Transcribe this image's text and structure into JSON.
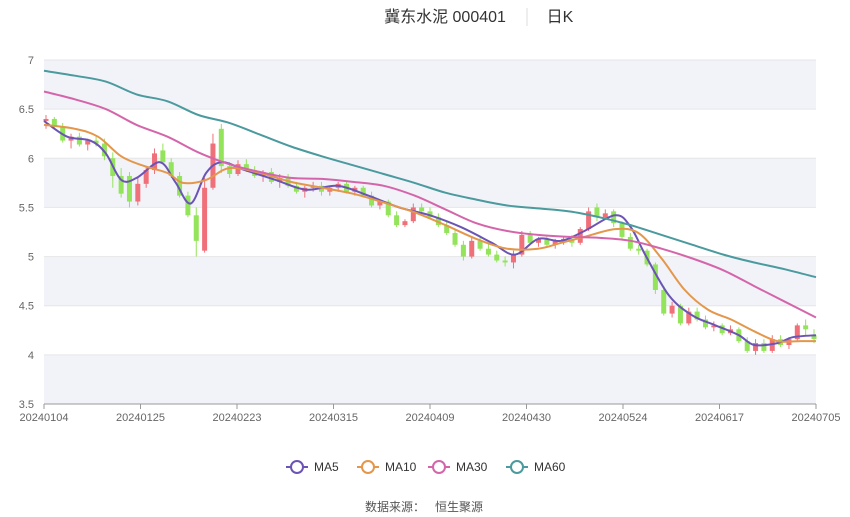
{
  "header": {
    "title": "冀东水泥 000401",
    "period": "日K"
  },
  "source": {
    "label": "数据来源：",
    "name": "恒生聚源"
  },
  "chart_data": {
    "type": "candlestick",
    "ylim": [
      3.5,
      7
    ],
    "yticks": [
      "3.5",
      "4",
      "4.5",
      "5",
      "5.5",
      "6",
      "6.5",
      "7"
    ],
    "xticks": [
      "20240104",
      "20240125",
      "20240223",
      "20240315",
      "20240409",
      "20240430",
      "20240524",
      "20240617",
      "20240705"
    ],
    "colors": {
      "up": "#f0707a",
      "down": "#93e45a",
      "band": "#f1f3f9"
    },
    "ohlc_points": [
      [
        6.38,
        6.44,
        6.3,
        6.4
      ],
      [
        6.4,
        6.42,
        6.3,
        6.32
      ],
      [
        6.32,
        6.36,
        6.16,
        6.18
      ],
      [
        6.18,
        6.25,
        6.1,
        6.22
      ],
      [
        6.22,
        6.26,
        6.12,
        6.14
      ],
      [
        6.14,
        6.2,
        6.08,
        6.18
      ],
      [
        6.18,
        6.22,
        6.12,
        6.15
      ],
      [
        6.15,
        6.2,
        5.98,
        6.02
      ],
      [
        6.0,
        6.06,
        5.7,
        5.82
      ],
      [
        5.82,
        5.9,
        5.6,
        5.64
      ],
      [
        5.82,
        5.86,
        5.5,
        5.56
      ],
      [
        5.56,
        5.8,
        5.52,
        5.74
      ],
      [
        5.74,
        5.92,
        5.7,
        5.88
      ],
      [
        5.88,
        6.1,
        5.84,
        6.05
      ],
      [
        6.08,
        6.15,
        5.95,
        5.96
      ],
      [
        5.96,
        6.0,
        5.8,
        5.82
      ],
      [
        5.82,
        5.86,
        5.6,
        5.62
      ],
      [
        5.62,
        5.66,
        5.4,
        5.42
      ],
      [
        5.42,
        5.5,
        5.0,
        5.16
      ],
      [
        5.06,
        5.8,
        5.04,
        5.7
      ],
      [
        5.7,
        6.25,
        5.68,
        6.15
      ],
      [
        6.3,
        6.35,
        5.85,
        5.92
      ],
      [
        5.92,
        5.96,
        5.8,
        5.84
      ],
      [
        5.84,
        5.98,
        5.82,
        5.94
      ],
      [
        5.94,
        5.99,
        5.86,
        5.88
      ],
      [
        5.88,
        5.92,
        5.8,
        5.82
      ],
      [
        5.82,
        5.88,
        5.76,
        5.86
      ],
      [
        5.86,
        5.9,
        5.74,
        5.76
      ],
      [
        5.76,
        5.84,
        5.7,
        5.8
      ],
      [
        5.8,
        5.84,
        5.7,
        5.72
      ],
      [
        5.72,
        5.76,
        5.64,
        5.66
      ],
      [
        5.66,
        5.72,
        5.6,
        5.7
      ],
      [
        5.7,
        5.76,
        5.66,
        5.72
      ],
      [
        5.72,
        5.76,
        5.62,
        5.66
      ],
      [
        5.66,
        5.72,
        5.62,
        5.7
      ],
      [
        5.7,
        5.76,
        5.66,
        5.74
      ],
      [
        5.74,
        5.76,
        5.64,
        5.66
      ],
      [
        5.66,
        5.72,
        5.62,
        5.7
      ],
      [
        5.7,
        5.72,
        5.6,
        5.62
      ],
      [
        5.62,
        5.66,
        5.5,
        5.52
      ],
      [
        5.52,
        5.58,
        5.48,
        5.56
      ],
      [
        5.56,
        5.58,
        5.4,
        5.42
      ],
      [
        5.42,
        5.46,
        5.3,
        5.32
      ],
      [
        5.32,
        5.38,
        5.3,
        5.36
      ],
      [
        5.36,
        5.54,
        5.34,
        5.5
      ],
      [
        5.5,
        5.54,
        5.44,
        5.46
      ],
      [
        5.46,
        5.5,
        5.38,
        5.4
      ],
      [
        5.4,
        5.44,
        5.3,
        5.32
      ],
      [
        5.32,
        5.36,
        5.22,
        5.24
      ],
      [
        5.24,
        5.28,
        5.1,
        5.12
      ],
      [
        5.12,
        5.16,
        4.96,
        5.0
      ],
      [
        5.0,
        5.2,
        4.98,
        5.16
      ],
      [
        5.16,
        5.2,
        5.06,
        5.08
      ],
      [
        5.08,
        5.14,
        5.0,
        5.02
      ],
      [
        5.02,
        5.06,
        4.94,
        4.96
      ],
      [
        4.96,
        5.0,
        4.9,
        4.94
      ],
      [
        4.94,
        5.06,
        4.88,
        5.02
      ],
      [
        5.02,
        5.26,
        5.0,
        5.22
      ],
      [
        5.22,
        5.26,
        5.12,
        5.14
      ],
      [
        5.14,
        5.2,
        5.1,
        5.18
      ],
      [
        5.18,
        5.22,
        5.1,
        5.12
      ],
      [
        5.12,
        5.18,
        5.08,
        5.16
      ],
      [
        5.16,
        5.2,
        5.12,
        5.18
      ],
      [
        5.18,
        5.22,
        5.1,
        5.14
      ],
      [
        5.14,
        5.3,
        5.12,
        5.28
      ],
      [
        5.28,
        5.5,
        5.26,
        5.46
      ],
      [
        5.5,
        5.54,
        5.36,
        5.4
      ],
      [
        5.4,
        5.48,
        5.38,
        5.44
      ],
      [
        5.46,
        5.48,
        5.3,
        5.34
      ],
      [
        5.34,
        5.36,
        5.18,
        5.2
      ],
      [
        5.2,
        5.24,
        5.06,
        5.08
      ],
      [
        5.08,
        5.12,
        5.02,
        5.06
      ],
      [
        5.06,
        5.08,
        4.9,
        4.92
      ],
      [
        4.92,
        4.94,
        4.62,
        4.66
      ],
      [
        4.66,
        4.7,
        4.4,
        4.42
      ],
      [
        4.42,
        4.54,
        4.38,
        4.5
      ],
      [
        4.5,
        4.52,
        4.3,
        4.32
      ],
      [
        4.32,
        4.48,
        4.3,
        4.44
      ],
      [
        4.44,
        4.48,
        4.34,
        4.36
      ],
      [
        4.36,
        4.4,
        4.26,
        4.28
      ],
      [
        4.28,
        4.34,
        4.24,
        4.3
      ],
      [
        4.3,
        4.32,
        4.2,
        4.22
      ],
      [
        4.22,
        4.3,
        4.2,
        4.26
      ],
      [
        4.26,
        4.28,
        4.12,
        4.14
      ],
      [
        4.14,
        4.18,
        4.02,
        4.04
      ],
      [
        4.04,
        4.16,
        4.0,
        4.12
      ],
      [
        4.12,
        4.16,
        4.02,
        4.04
      ],
      [
        4.04,
        4.2,
        4.02,
        4.16
      ],
      [
        4.16,
        4.2,
        4.08,
        4.1
      ],
      [
        4.1,
        4.18,
        4.06,
        4.16
      ],
      [
        4.16,
        4.32,
        4.14,
        4.3
      ],
      [
        4.3,
        4.36,
        4.2,
        4.26
      ],
      [
        4.2,
        4.26,
        4.12,
        4.16
      ]
    ],
    "series": [
      {
        "name": "MA5",
        "color": "#6b54b5",
        "points": [
          [
            0,
            6.38
          ],
          [
            0.03,
            6.22
          ],
          [
            0.06,
            6.18
          ],
          [
            0.08,
            6.05
          ],
          [
            0.1,
            5.78
          ],
          [
            0.12,
            5.8
          ],
          [
            0.15,
            5.96
          ],
          [
            0.17,
            5.76
          ],
          [
            0.19,
            5.54
          ],
          [
            0.21,
            5.85
          ],
          [
            0.23,
            5.96
          ],
          [
            0.26,
            5.88
          ],
          [
            0.3,
            5.78
          ],
          [
            0.34,
            5.68
          ],
          [
            0.38,
            5.72
          ],
          [
            0.42,
            5.62
          ],
          [
            0.46,
            5.5
          ],
          [
            0.5,
            5.42
          ],
          [
            0.54,
            5.3
          ],
          [
            0.58,
            5.14
          ],
          [
            0.61,
            5.02
          ],
          [
            0.64,
            5.18
          ],
          [
            0.67,
            5.16
          ],
          [
            0.7,
            5.26
          ],
          [
            0.74,
            5.42
          ],
          [
            0.76,
            5.3
          ],
          [
            0.78,
            5.0
          ],
          [
            0.81,
            4.6
          ],
          [
            0.84,
            4.4
          ],
          [
            0.87,
            4.3
          ],
          [
            0.9,
            4.2
          ],
          [
            0.92,
            4.1
          ],
          [
            0.95,
            4.12
          ],
          [
            0.97,
            4.18
          ],
          [
            1.0,
            4.2
          ]
        ]
      },
      {
        "name": "MA10",
        "color": "#e4974a",
        "points": [
          [
            0,
            6.34
          ],
          [
            0.04,
            6.3
          ],
          [
            0.07,
            6.22
          ],
          [
            0.1,
            6.02
          ],
          [
            0.13,
            5.92
          ],
          [
            0.16,
            5.85
          ],
          [
            0.18,
            5.75
          ],
          [
            0.21,
            5.78
          ],
          [
            0.24,
            5.9
          ],
          [
            0.28,
            5.85
          ],
          [
            0.32,
            5.76
          ],
          [
            0.36,
            5.7
          ],
          [
            0.4,
            5.64
          ],
          [
            0.44,
            5.55
          ],
          [
            0.48,
            5.45
          ],
          [
            0.52,
            5.32
          ],
          [
            0.56,
            5.18
          ],
          [
            0.6,
            5.08
          ],
          [
            0.64,
            5.08
          ],
          [
            0.67,
            5.14
          ],
          [
            0.7,
            5.2
          ],
          [
            0.74,
            5.28
          ],
          [
            0.77,
            5.24
          ],
          [
            0.8,
            4.98
          ],
          [
            0.83,
            4.66
          ],
          [
            0.86,
            4.46
          ],
          [
            0.89,
            4.36
          ],
          [
            0.92,
            4.24
          ],
          [
            0.95,
            4.14
          ],
          [
            0.98,
            4.14
          ],
          [
            1.0,
            4.14
          ]
        ]
      },
      {
        "name": "MA30",
        "color": "#d565aa",
        "points": [
          [
            0,
            6.68
          ],
          [
            0.04,
            6.6
          ],
          [
            0.08,
            6.5
          ],
          [
            0.12,
            6.34
          ],
          [
            0.16,
            6.22
          ],
          [
            0.2,
            6.06
          ],
          [
            0.24,
            5.94
          ],
          [
            0.28,
            5.86
          ],
          [
            0.32,
            5.8
          ],
          [
            0.36,
            5.79
          ],
          [
            0.4,
            5.76
          ],
          [
            0.44,
            5.72
          ],
          [
            0.48,
            5.62
          ],
          [
            0.52,
            5.48
          ],
          [
            0.56,
            5.34
          ],
          [
            0.6,
            5.26
          ],
          [
            0.64,
            5.22
          ],
          [
            0.68,
            5.2
          ],
          [
            0.72,
            5.19
          ],
          [
            0.76,
            5.16
          ],
          [
            0.8,
            5.08
          ],
          [
            0.84,
            4.98
          ],
          [
            0.88,
            4.86
          ],
          [
            0.92,
            4.7
          ],
          [
            0.96,
            4.54
          ],
          [
            1.0,
            4.38
          ]
        ]
      },
      {
        "name": "MA60",
        "color": "#4a9a9e",
        "points": [
          [
            0,
            6.89
          ],
          [
            0.04,
            6.84
          ],
          [
            0.08,
            6.78
          ],
          [
            0.12,
            6.65
          ],
          [
            0.16,
            6.58
          ],
          [
            0.2,
            6.44
          ],
          [
            0.24,
            6.36
          ],
          [
            0.28,
            6.24
          ],
          [
            0.32,
            6.12
          ],
          [
            0.36,
            6.02
          ],
          [
            0.4,
            5.93
          ],
          [
            0.44,
            5.84
          ],
          [
            0.48,
            5.75
          ],
          [
            0.52,
            5.65
          ],
          [
            0.56,
            5.58
          ],
          [
            0.6,
            5.52
          ],
          [
            0.64,
            5.49
          ],
          [
            0.68,
            5.46
          ],
          [
            0.72,
            5.4
          ],
          [
            0.76,
            5.32
          ],
          [
            0.8,
            5.22
          ],
          [
            0.84,
            5.12
          ],
          [
            0.88,
            5.02
          ],
          [
            0.92,
            4.94
          ],
          [
            0.96,
            4.87
          ],
          [
            1.0,
            4.79
          ]
        ]
      }
    ]
  }
}
